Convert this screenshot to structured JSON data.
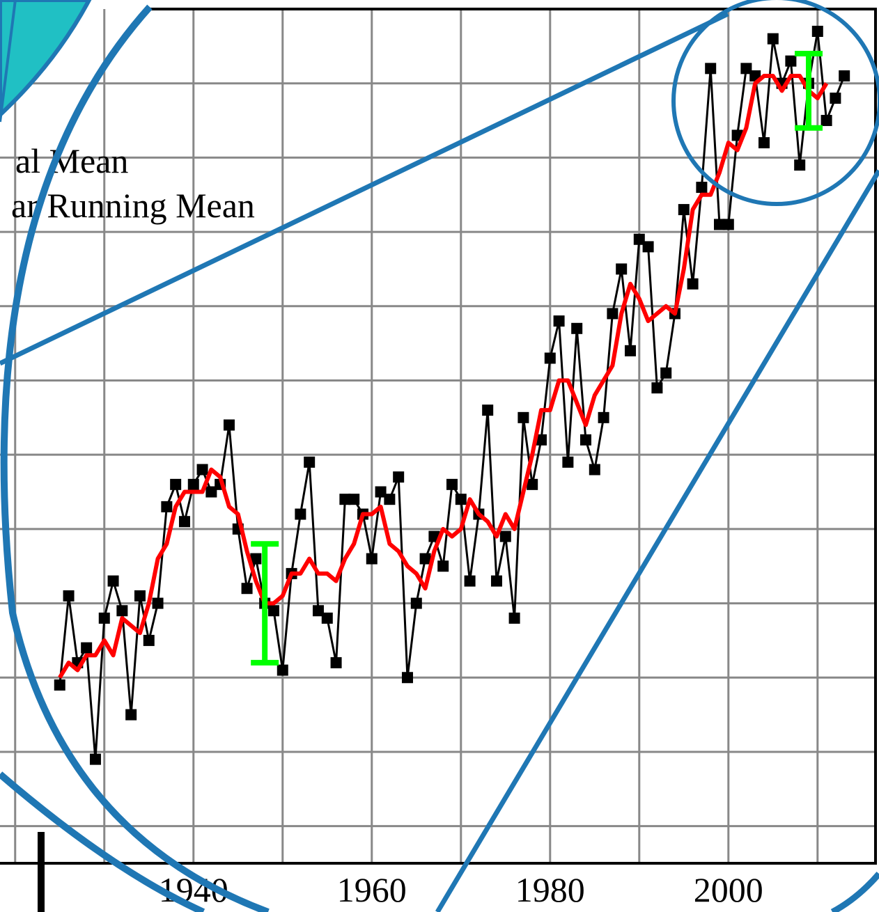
{
  "chart_data": {
    "type": "line",
    "legend_texts_note_free": null,
    "x": [
      1925,
      1926,
      1927,
      1928,
      1929,
      1930,
      1931,
      1932,
      1933,
      1934,
      1935,
      1936,
      1937,
      1938,
      1939,
      1940,
      1941,
      1942,
      1943,
      1944,
      1945,
      1946,
      1947,
      1948,
      1949,
      1950,
      1951,
      1952,
      1953,
      1954,
      1955,
      1956,
      1957,
      1958,
      1959,
      1960,
      1961,
      1962,
      1963,
      1964,
      1965,
      1966,
      1967,
      1968,
      1969,
      1970,
      1971,
      1972,
      1973,
      1974,
      1975,
      1976,
      1977,
      1978,
      1979,
      1980,
      1981,
      1982,
      1983,
      1984,
      1985,
      1986,
      1987,
      1988,
      1989,
      1990,
      1991,
      1992,
      1993,
      1994,
      1995,
      1996,
      1997,
      1998,
      1999,
      2000,
      2001,
      2002,
      2003,
      2004,
      2005,
      2006,
      2007,
      2008,
      2009,
      2010,
      2011,
      2012,
      2013
    ],
    "series": [
      {
        "name": "al Mean",
        "color": "#000000",
        "marker": "square",
        "values": [
          -0.21,
          -0.09,
          -0.18,
          -0.16,
          -0.31,
          -0.12,
          -0.07,
          -0.11,
          -0.25,
          -0.09,
          -0.15,
          -0.1,
          0.03,
          0.06,
          0.01,
          0.06,
          0.08,
          0.05,
          0.06,
          0.14,
          0.0,
          -0.08,
          -0.04,
          -0.1,
          -0.11,
          -0.19,
          -0.06,
          0.02,
          0.09,
          -0.11,
          -0.12,
          -0.18,
          0.04,
          0.04,
          0.02,
          -0.04,
          0.05,
          0.04,
          0.07,
          -0.2,
          -0.1,
          -0.04,
          -0.01,
          -0.05,
          0.06,
          0.04,
          -0.07,
          0.02,
          0.16,
          -0.07,
          -0.01,
          -0.12,
          0.15,
          0.06,
          0.12,
          0.23,
          0.28,
          0.09,
          0.27,
          0.12,
          0.08,
          0.15,
          0.29,
          0.35,
          0.24,
          0.39,
          0.38,
          0.19,
          0.21,
          0.29,
          0.43,
          0.33,
          0.46,
          0.62,
          0.41,
          0.41,
          0.53,
          0.62,
          0.61,
          0.52,
          0.66,
          0.6,
          0.63,
          0.49,
          0.6,
          0.67,
          0.55,
          0.58,
          0.61
        ]
      },
      {
        "name": "ar Running Mean",
        "color": "#ff0000",
        "values": [
          -0.2,
          -0.18,
          -0.19,
          -0.17,
          -0.17,
          -0.15,
          -0.17,
          -0.12,
          -0.13,
          -0.14,
          -0.1,
          -0.04,
          -0.02,
          0.03,
          0.05,
          0.05,
          0.05,
          0.08,
          0.07,
          0.03,
          0.02,
          -0.03,
          -0.07,
          -0.1,
          -0.1,
          -0.09,
          -0.06,
          -0.06,
          -0.04,
          -0.06,
          -0.06,
          -0.07,
          -0.04,
          -0.02,
          0.02,
          0.02,
          0.03,
          -0.02,
          -0.03,
          -0.05,
          -0.06,
          -0.08,
          -0.03,
          0.0,
          -0.01,
          0.0,
          0.04,
          0.02,
          0.01,
          -0.01,
          0.02,
          0.0,
          0.05,
          0.1,
          0.16,
          0.16,
          0.2,
          0.2,
          0.17,
          0.14,
          0.18,
          0.2,
          0.22,
          0.29,
          0.33,
          0.31,
          0.28,
          0.29,
          0.3,
          0.29,
          0.35,
          0.43,
          0.45,
          0.45,
          0.48,
          0.52,
          0.51,
          0.54,
          0.6,
          0.61,
          0.61,
          0.59,
          0.61,
          0.61,
          0.59,
          0.58,
          0.6,
          null,
          null
        ]
      }
    ],
    "error_bars": {
      "color": "#00ff00",
      "x": [
        1948,
        2009
      ],
      "values": [
        -0.1,
        0.59
      ],
      "errors": [
        0.08,
        0.05
      ]
    },
    "xlim": [
      1918.3,
      2016.5
    ],
    "ylim": [
      -0.45,
      0.7
    ],
    "xticks": [
      1940,
      1960,
      1980,
      2000
    ],
    "x_minor_ticks": [
      1920,
      1930,
      1950,
      1970,
      1990,
      2010
    ],
    "ygrid": [
      -0.4,
      -0.3,
      -0.2,
      -0.1,
      0,
      0.1,
      0.2,
      0.3,
      0.4,
      0.5,
      0.6
    ],
    "grid": true
  }
}
